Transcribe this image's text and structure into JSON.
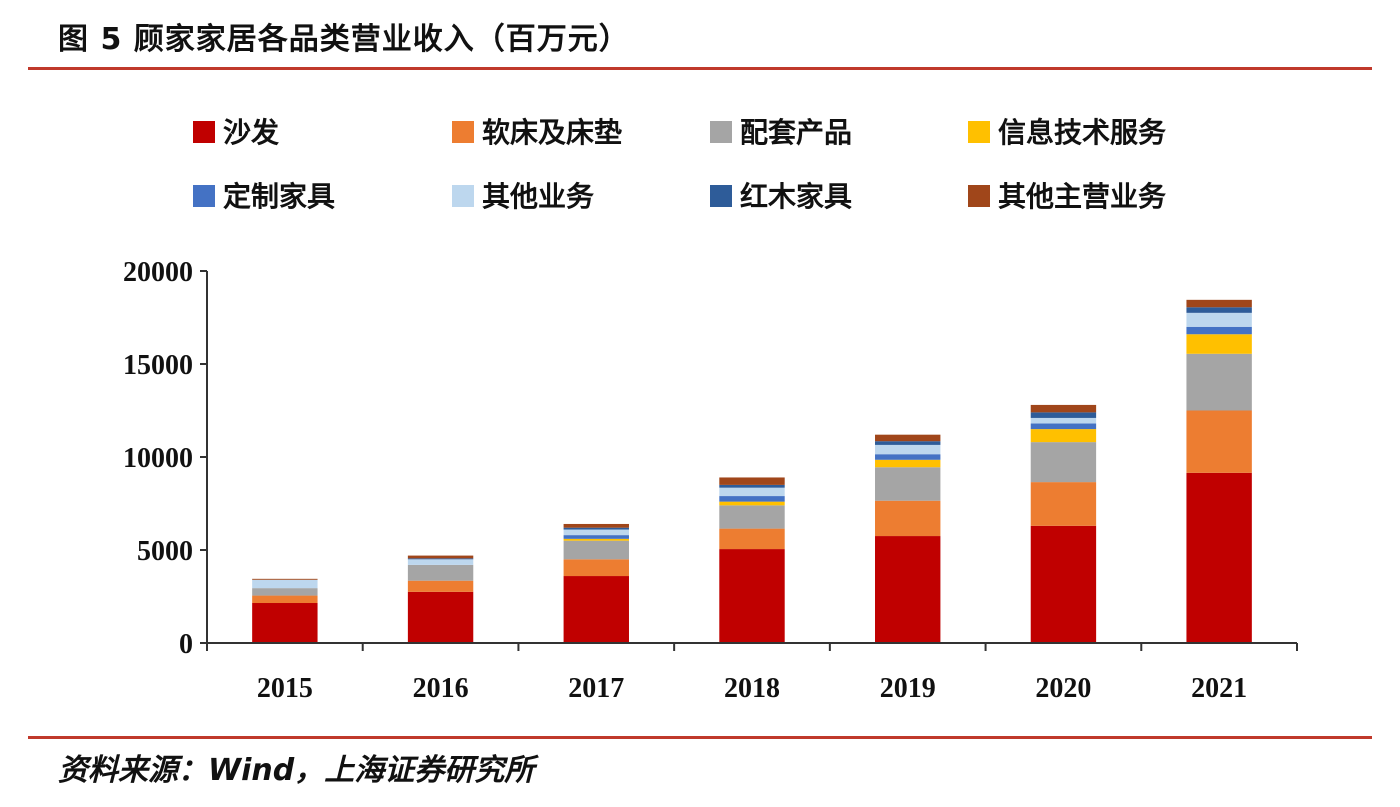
{
  "header": {
    "title": "图 5 顾家家居各品类营业收入（百万元）"
  },
  "footer": {
    "source": "资料来源：Wind，上海证券研究所"
  },
  "chart_data": {
    "type": "bar",
    "stacked": true,
    "title": "图 5 顾家家居各品类营业收入（百万元）",
    "xlabel": "",
    "ylabel": "",
    "ylim": [
      0,
      20000
    ],
    "yticks": [
      0,
      5000,
      10000,
      15000,
      20000
    ],
    "grid": false,
    "legend_position": "top",
    "categories": [
      "2015",
      "2016",
      "2017",
      "2018",
      "2019",
      "2020",
      "2021"
    ],
    "series": [
      {
        "name": "沙发",
        "color": "#c00000",
        "values": [
          2150,
          2750,
          3600,
          5050,
          5750,
          6300,
          9150
        ]
      },
      {
        "name": "软床及床垫",
        "color": "#ed7d31",
        "values": [
          400,
          600,
          900,
          1100,
          1900,
          2350,
          3350
        ]
      },
      {
        "name": "配套产品",
        "color": "#a5a5a5",
        "values": [
          400,
          850,
          1000,
          1250,
          1800,
          2150,
          3050
        ]
      },
      {
        "name": "信息技术服务",
        "color": "#ffc000",
        "values": [
          0,
          0,
          100,
          200,
          400,
          700,
          1050
        ]
      },
      {
        "name": "定制家具",
        "color": "#4472c4",
        "values": [
          0,
          0,
          200,
          300,
          300,
          300,
          400
        ]
      },
      {
        "name": "其他业务",
        "color": "#bdd7ee",
        "values": [
          450,
          300,
          300,
          450,
          500,
          300,
          750
        ]
      },
      {
        "name": "红木家具",
        "color": "#2e5c99",
        "values": [
          0,
          50,
          100,
          150,
          200,
          300,
          300
        ]
      },
      {
        "name": "其他主营业务",
        "color": "#a0461a",
        "values": [
          50,
          150,
          200,
          400,
          350,
          400,
          400
        ]
      }
    ]
  }
}
